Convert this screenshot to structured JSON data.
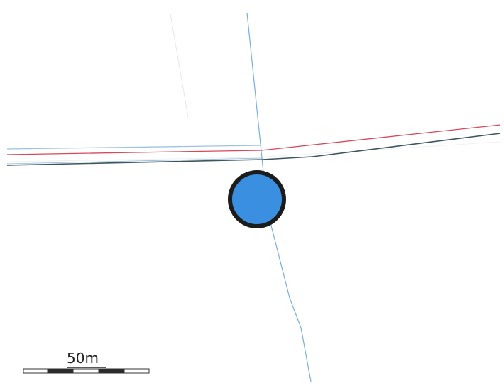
{
  "scale_bar": {
    "label": "50m"
  },
  "colors": {
    "background": "#ffffff",
    "blue_line": "#79aee0",
    "red_line": "#d9475b",
    "dark_line": "#3d5560",
    "marker_fill": "#3b8fe0",
    "marker_stroke": "#1c1c1c",
    "faint_line": "#dde6ee"
  },
  "marker": {
    "type": "location-marker"
  }
}
